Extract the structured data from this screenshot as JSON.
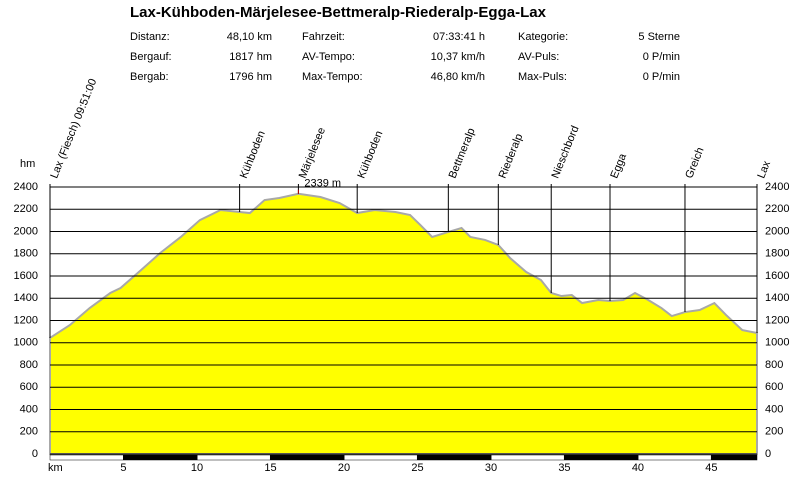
{
  "stats": [
    [
      "Distanz:",
      "48,10 km",
      "Fahrzeit:",
      "07:33:41 h",
      "Kategorie:",
      "5 Sterne"
    ],
    [
      "Bergauf:",
      "1817 hm",
      "AV-Tempo:",
      "10,37 km/h",
      "AV-Puls:",
      "0 P/min"
    ],
    [
      "Bergab:",
      "1796 hm",
      "Max-Tempo:",
      "46,80 km/h",
      "Max-Puls:",
      "0 P/min"
    ]
  ],
  "chart_data": {
    "type": "area",
    "title": "Lax-Kühboden-Märjelesee-Bettmeralp-Riederalp-Egga-Lax",
    "xlabel": "km",
    "ylabel": "hm",
    "color": "#ffff00",
    "x": [
      0,
      1.36,
      2.7,
      4.1,
      4.8,
      6.2,
      7.5,
      8.9,
      10.2,
      11.6,
      12.9,
      13.6,
      14.6,
      15.6,
      16.9,
      18.4,
      19.7,
      20.9,
      22.1,
      23.5,
      24.5,
      25.2,
      26,
      27.1,
      28,
      28.6,
      29.6,
      30.5,
      31.3,
      32.4,
      33.4,
      34.1,
      34.8,
      35.5,
      36.2,
      37.3,
      38.1,
      39,
      39.8,
      40.7,
      41.6,
      42.3,
      43.2,
      44.2,
      45.2,
      46,
      47.1,
      48.1
    ],
    "y": [
      1043,
      1160,
      1312,
      1447,
      1492,
      1654,
      1807,
      1951,
      2103,
      2193,
      2175,
      2166,
      2283,
      2301,
      2339,
      2310,
      2256,
      2166,
      2193,
      2175,
      2148,
      2058,
      1951,
      1996,
      2031,
      1951,
      1924,
      1879,
      1762,
      1636,
      1564,
      1447,
      1420,
      1429,
      1357,
      1384,
      1375,
      1384,
      1447,
      1384,
      1312,
      1240,
      1276,
      1294,
      1357,
      1249,
      1114,
      1088
    ],
    "xlim": [
      0,
      48.1
    ],
    "ylim": [
      0,
      2400
    ],
    "xticks": [
      5,
      10,
      15,
      20,
      25,
      30,
      35,
      40,
      45
    ],
    "yticks": [
      0,
      200,
      400,
      600,
      800,
      1000,
      1200,
      1400,
      1600,
      1800,
      2000,
      2200,
      2400
    ],
    "grid": true,
    "waypoints": [
      {
        "label": "Lax (Fiesch) 09:51:00",
        "x": 0
      },
      {
        "label": "Kühboden",
        "x": 12.9
      },
      {
        "label": "Märjelesee",
        "x": 16.9
      },
      {
        "label": "Kühboden",
        "x": 20.9
      },
      {
        "label": "Bettmeralp",
        "x": 27.1
      },
      {
        "label": "Riederalp",
        "x": 30.5
      },
      {
        "label": "Nieschbord",
        "x": 34.1
      },
      {
        "label": "Egga",
        "x": 38.1
      },
      {
        "label": "Greich",
        "x": 43.2
      },
      {
        "label": "Lax",
        "x": 48.1
      }
    ],
    "annotation": {
      "label": "2339 m",
      "x": 16.9,
      "y": 2339
    }
  }
}
